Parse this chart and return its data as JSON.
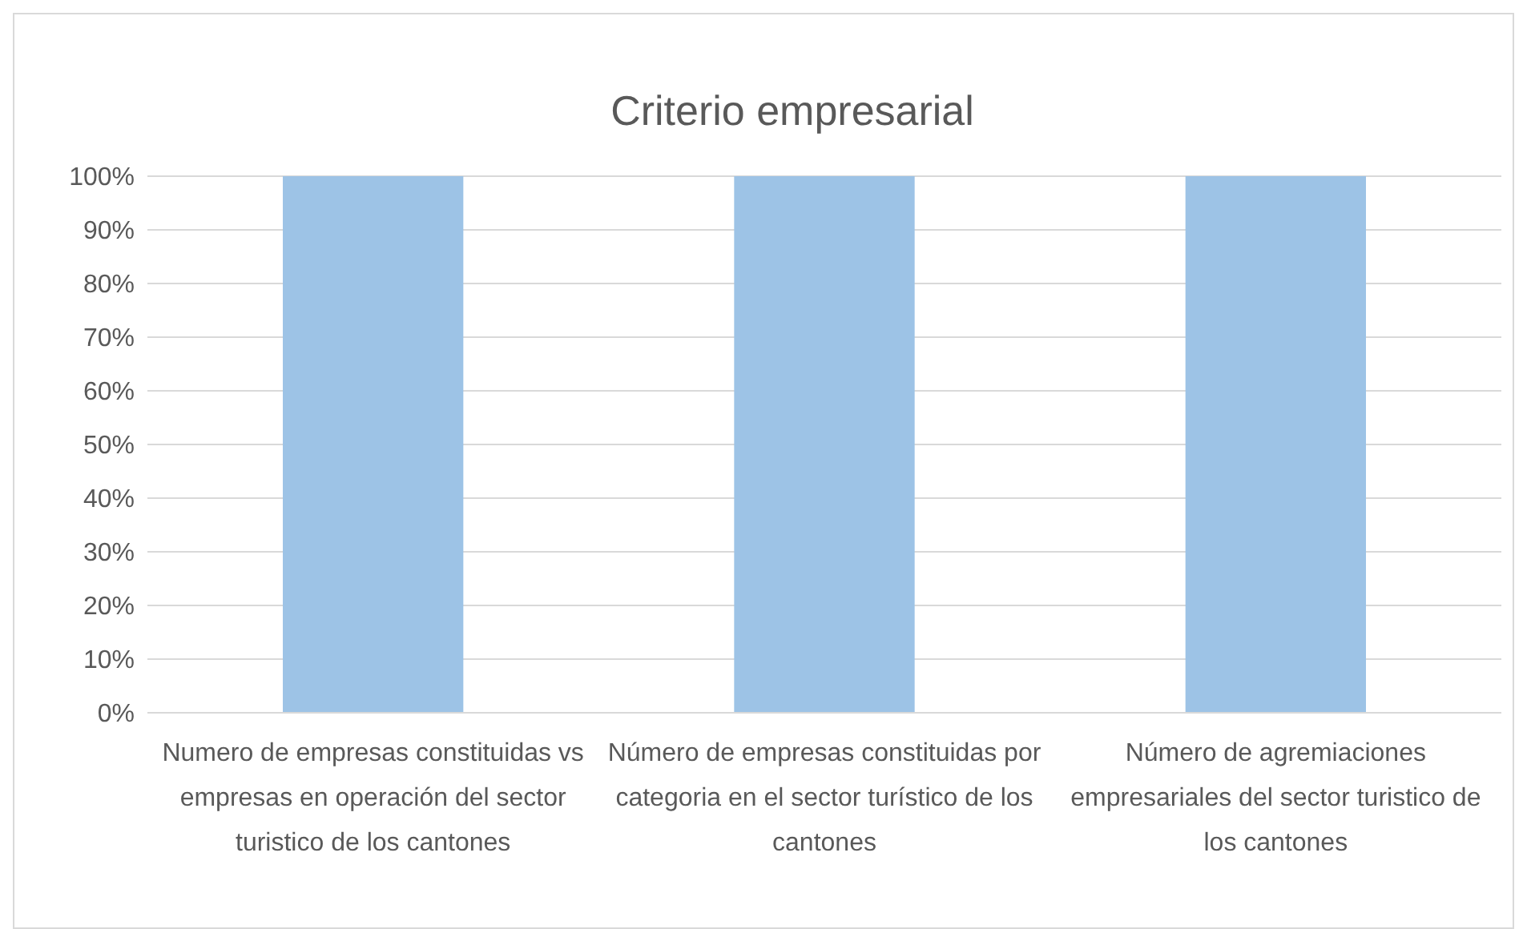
{
  "chart_data": {
    "type": "bar",
    "title": "Criterio empresarial",
    "categories": [
      "Numero de empresas constituidas vs empresas en operación del sector turistico de los cantones",
      "Número de empresas constituidas por categoria en el sector turístico de los cantones",
      "Número de agremiaciones empresariales del sector turistico de los cantones"
    ],
    "values": [
      100,
      100,
      100
    ],
    "color": "#9dc3e6",
    "ylim": [
      0,
      100
    ],
    "yticks": [
      {
        "value": 0,
        "label": "0%"
      },
      {
        "value": 10,
        "label": "10%"
      },
      {
        "value": 20,
        "label": "20%"
      },
      {
        "value": 30,
        "label": "30%"
      },
      {
        "value": 40,
        "label": "40%"
      },
      {
        "value": 50,
        "label": "50%"
      },
      {
        "value": 60,
        "label": "60%"
      },
      {
        "value": 70,
        "label": "70%"
      },
      {
        "value": 80,
        "label": "80%"
      },
      {
        "value": 90,
        "label": "90%"
      },
      {
        "value": 100,
        "label": "100%"
      }
    ],
    "grid": "y"
  }
}
